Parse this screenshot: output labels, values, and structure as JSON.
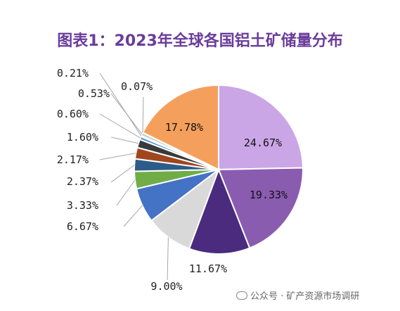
{
  "title": "图表1：2023年全球各国铝土矿储量分布",
  "watermark": "公众号 · 矿产资源市场调研",
  "chart_data": {
    "type": "pie",
    "title": "图表1：2023年全球各国铝土矿储量分布",
    "slices": [
      {
        "label": "24.67%",
        "value": 24.67,
        "color": "#cba6e6"
      },
      {
        "label": "19.33%",
        "value": 19.33,
        "color": "#8a5cb0"
      },
      {
        "label": "11.67%",
        "value": 11.67,
        "color": "#4a2b7e"
      },
      {
        "label": "9.00%",
        "value": 9.0,
        "color": "#d9d9d9"
      },
      {
        "label": "6.67%",
        "value": 6.67,
        "color": "#4472c4"
      },
      {
        "label": "3.33%",
        "value": 3.33,
        "color": "#70ad47"
      },
      {
        "label": "2.37%",
        "value": 2.37,
        "color": "#2e5c8a"
      },
      {
        "label": "2.17%",
        "value": 2.17,
        "color": "#a0461e"
      },
      {
        "label": "1.60%",
        "value": 1.6,
        "color": "#3a3a3a"
      },
      {
        "label": "0.60%",
        "value": 0.6,
        "color": "#5b9bd5"
      },
      {
        "label": "0.21%",
        "value": 0.21,
        "color": "#8faadc"
      },
      {
        "label": "0.53%",
        "value": 0.53,
        "color": "#bfbfbf"
      },
      {
        "label": "0.07%",
        "value": 0.07,
        "color": "#f4b183"
      },
      {
        "label": "17.78%",
        "value": 17.78,
        "color": "#f4a05c"
      }
    ]
  }
}
